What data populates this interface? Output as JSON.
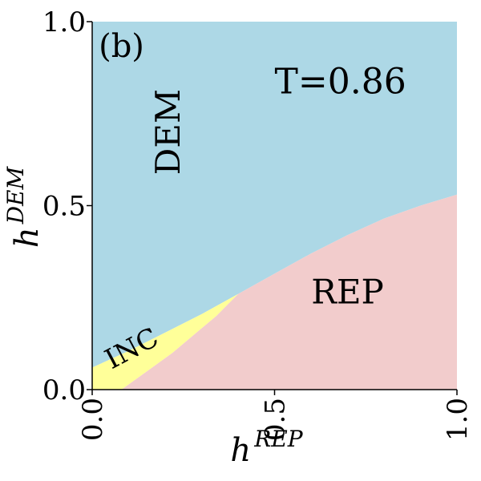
{
  "chart_data": {
    "type": "area",
    "panel_label": "(b)",
    "annotation": "T=0.86",
    "xlabel": {
      "base": "h",
      "sup": "REP"
    },
    "ylabel": {
      "base": "h",
      "sup": "DEM"
    },
    "xlim": [
      0.0,
      1.0
    ],
    "ylim": [
      0.0,
      1.0
    ],
    "xticks": [
      {
        "value": 0.0,
        "label": "0.0"
      },
      {
        "value": 0.5,
        "label": "0.5"
      },
      {
        "value": 1.0,
        "label": "1.0"
      }
    ],
    "yticks": [
      {
        "value": 0.0,
        "label": "0.0"
      },
      {
        "value": 0.5,
        "label": "0.5"
      },
      {
        "value": 1.0,
        "label": "1.0"
      }
    ],
    "grid": false,
    "regions": [
      {
        "label": "DEM",
        "color": "#add8e6"
      },
      {
        "label": "REP",
        "color": "#f2cccc"
      },
      {
        "label": "INC",
        "color": "#ffff99"
      }
    ],
    "boundaries": {
      "dem_upper": [
        [
          0.0,
          0.06
        ],
        [
          0.1,
          0.105
        ],
        [
          0.2,
          0.155
        ],
        [
          0.3,
          0.205
        ],
        [
          0.4,
          0.26
        ],
        [
          0.5,
          0.315
        ],
        [
          0.6,
          0.37
        ],
        [
          0.7,
          0.42
        ],
        [
          0.8,
          0.465
        ],
        [
          0.9,
          0.5
        ],
        [
          1.0,
          0.53
        ]
      ],
      "rep_lower": [
        [
          0.0,
          0.06
        ],
        [
          0.1,
          0.105
        ],
        [
          0.2,
          0.155
        ],
        [
          0.3,
          0.205
        ],
        [
          0.4,
          0.26
        ],
        [
          0.5,
          0.315
        ],
        [
          0.6,
          0.37
        ],
        [
          0.7,
          0.42
        ],
        [
          0.8,
          0.465
        ],
        [
          0.9,
          0.5
        ],
        [
          1.0,
          0.53
        ]
      ],
      "rep_left": [
        [
          0.08,
          0.0
        ],
        [
          0.15,
          0.05
        ],
        [
          0.22,
          0.1
        ],
        [
          0.28,
          0.15
        ],
        [
          0.34,
          0.2
        ],
        [
          0.4,
          0.26
        ]
      ]
    },
    "labels_at": {
      "DEM": {
        "x": 0.24,
        "y": 0.7,
        "rotate": -90
      },
      "REP": {
        "x": 0.7,
        "y": 0.23,
        "rotate": 0
      },
      "INC": {
        "x": 0.12,
        "y": 0.09,
        "rotate": -28
      },
      "panel": {
        "x": 0.02,
        "y": 0.93
      },
      "annotation": {
        "x": 0.5,
        "y": 0.82
      }
    }
  }
}
